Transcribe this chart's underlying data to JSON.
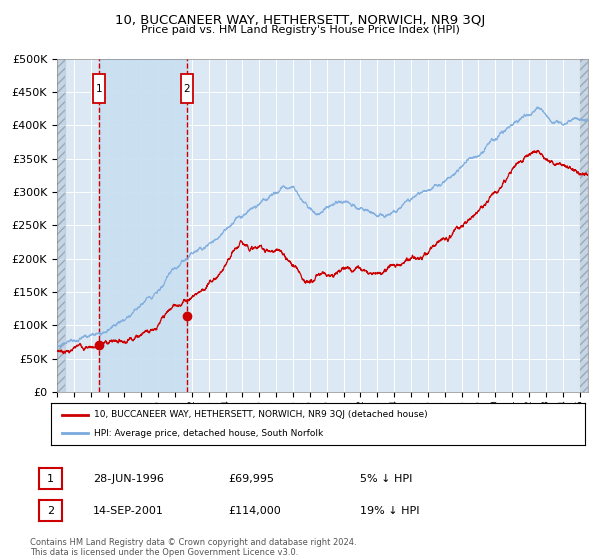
{
  "title": "10, BUCCANEER WAY, HETHERSETT, NORWICH, NR9 3QJ",
  "subtitle": "Price paid vs. HM Land Registry's House Price Index (HPI)",
  "ylabel_ticks": [
    "£0",
    "£50K",
    "£100K",
    "£150K",
    "£200K",
    "£250K",
    "£300K",
    "£350K",
    "£400K",
    "£450K",
    "£500K"
  ],
  "ytick_values": [
    0,
    50000,
    100000,
    150000,
    200000,
    250000,
    300000,
    350000,
    400000,
    450000,
    500000
  ],
  "x_start_year": 1994,
  "x_end_year": 2025,
  "hpi_color": "#7aaadd",
  "property_color": "#cc0000",
  "sale1_date": 1996.49,
  "sale1_value": 69995,
  "sale2_date": 2001.71,
  "sale2_value": 114000,
  "legend_property": "10, BUCCANEER WAY, HETHERSETT, NORWICH, NR9 3QJ (detached house)",
  "legend_hpi": "HPI: Average price, detached house, South Norfolk",
  "annotation1_date": "28-JUN-1996",
  "annotation1_price": "£69,995",
  "annotation1_pct": "5% ↓ HPI",
  "annotation2_date": "14-SEP-2001",
  "annotation2_price": "£114,000",
  "annotation2_pct": "19% ↓ HPI",
  "footer": "Contains HM Land Registry data © Crown copyright and database right 2024.\nThis data is licensed under the Open Government Licence v3.0.",
  "background_color": "#ffffff",
  "plot_bg_color": "#dce9f5",
  "grid_color": "#ffffff",
  "shade_between_sales_color": "#c8dff0",
  "hatch_color": "#b8c8d8"
}
